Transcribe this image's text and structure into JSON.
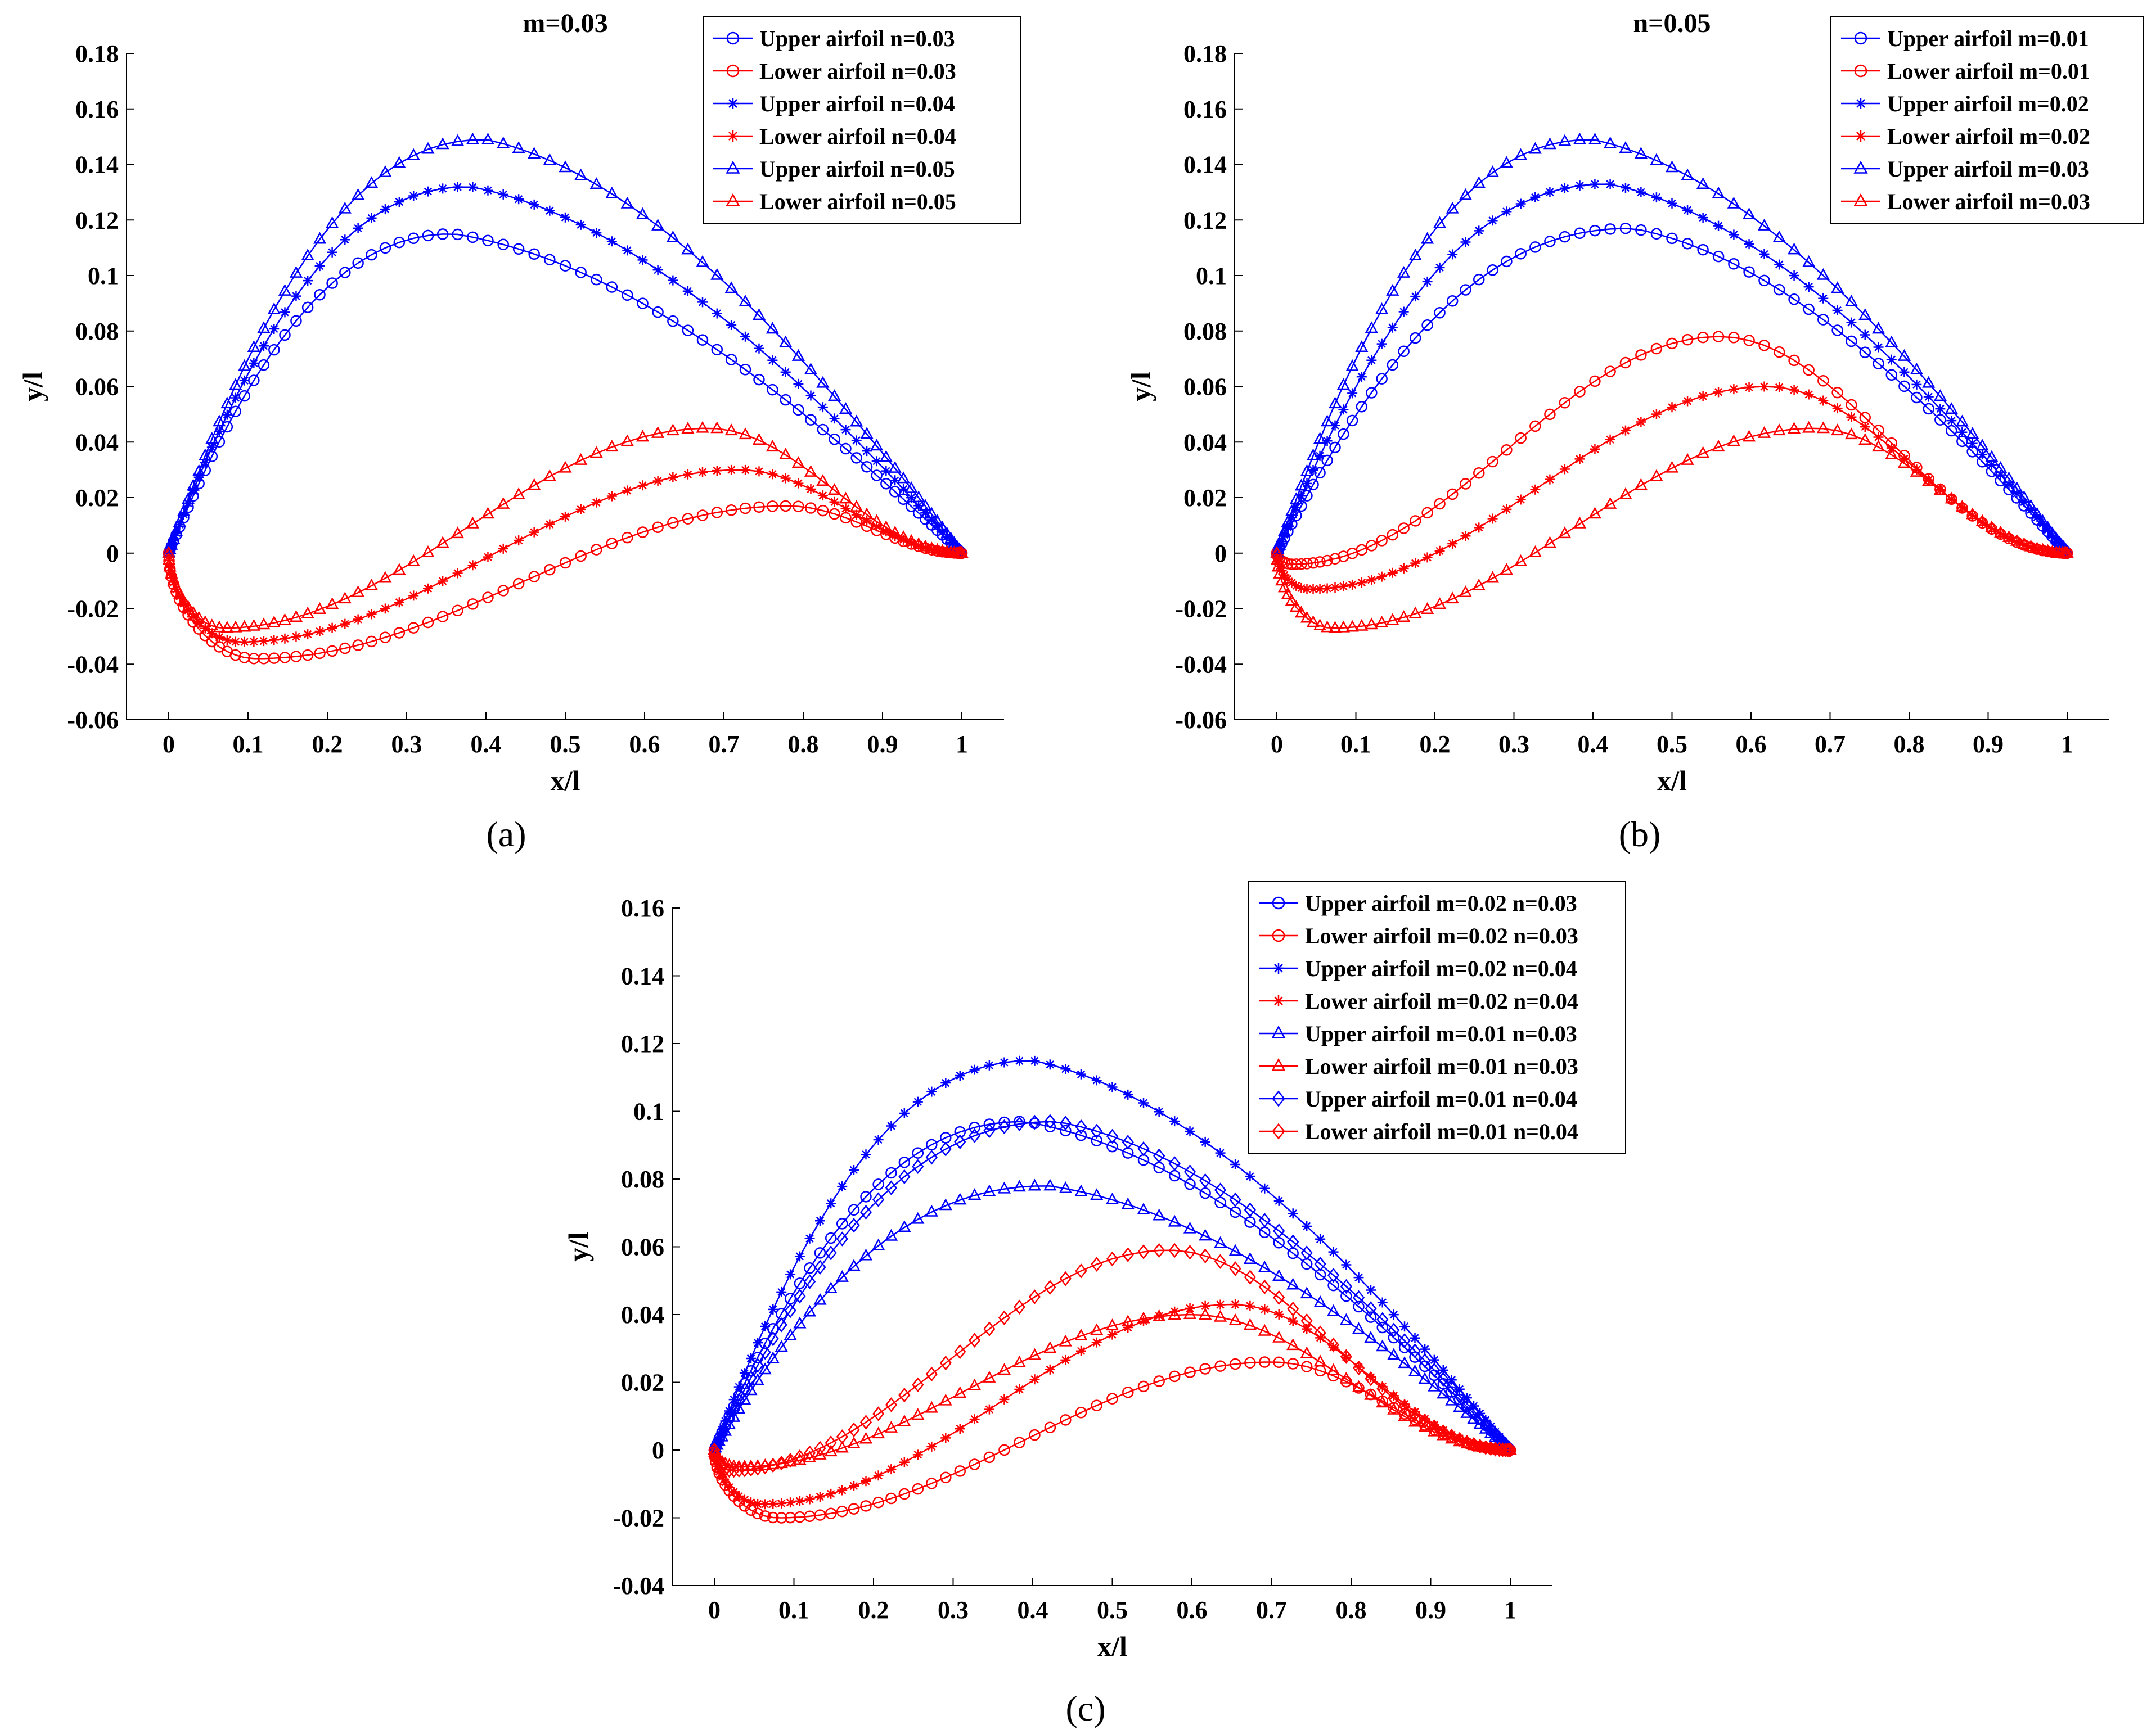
{
  "colors": {
    "upper": "#0000ff",
    "lower": "#ff0000"
  },
  "chart_data": [
    {
      "id": "a",
      "type": "line",
      "panel_label": "(a)",
      "title": "m=0.03",
      "xlabel": "x/l",
      "ylabel": "y/l",
      "xlim": [
        0,
        1
      ],
      "ylim": [
        -0.06,
        0.18
      ],
      "xticks": [
        0,
        0.1,
        0.2,
        0.3,
        0.4,
        0.5,
        0.6,
        0.7,
        0.8,
        0.9,
        1
      ],
      "xtick_labels": [
        "0",
        "0.1",
        "0.2",
        "0.3",
        "0.4",
        "0.5",
        "0.6",
        "0.7",
        "0.8",
        "0.9",
        "1"
      ],
      "yticks": [
        -0.06,
        -0.04,
        -0.02,
        0,
        0.02,
        0.04,
        0.06,
        0.08,
        0.1,
        0.12,
        0.14,
        0.16,
        0.18
      ],
      "ytick_labels": [
        "-0.06",
        "-0.04",
        "-0.02",
        "0",
        "0.02",
        "0.04",
        "0.06",
        "0.08",
        "0.1",
        "0.12",
        "0.14",
        "0.16",
        "0.18"
      ],
      "legend_position": "top-right",
      "series": [
        {
          "name": "Upper airfoil n=0.03",
          "side": "upper",
          "marker": "circle",
          "color": "#0000ff",
          "peak": [
            0.36,
            0.115
          ]
        },
        {
          "name": "Lower airfoil n=0.03",
          "side": "lower",
          "marker": "circle",
          "color": "#ff0000",
          "trough": [
            0.11,
            -0.038
          ],
          "peak": [
            0.78,
            0.017
          ]
        },
        {
          "name": "Upper airfoil n=0.04",
          "side": "upper",
          "marker": "star",
          "color": "#0000ff",
          "peak": [
            0.38,
            0.132
          ]
        },
        {
          "name": "Lower airfoil n=0.04",
          "side": "lower",
          "marker": "star",
          "color": "#ff0000",
          "trough": [
            0.09,
            -0.032
          ],
          "peak": [
            0.72,
            0.03
          ]
        },
        {
          "name": "Upper airfoil n=0.05",
          "side": "upper",
          "marker": "triangle",
          "color": "#0000ff",
          "peak": [
            0.4,
            0.149
          ]
        },
        {
          "name": "Lower airfoil n=0.05",
          "side": "lower",
          "marker": "triangle",
          "color": "#ff0000",
          "trough": [
            0.07,
            -0.027
          ],
          "peak": [
            0.68,
            0.045
          ]
        }
      ]
    },
    {
      "id": "b",
      "type": "line",
      "panel_label": "(b)",
      "title": "n=0.05",
      "xlabel": "x/l",
      "ylabel": "y/l",
      "xlim": [
        0,
        1
      ],
      "ylim": [
        -0.06,
        0.18
      ],
      "xticks": [
        0,
        0.1,
        0.2,
        0.3,
        0.4,
        0.5,
        0.6,
        0.7,
        0.8,
        0.9,
        1
      ],
      "xtick_labels": [
        "0",
        "0.1",
        "0.2",
        "0.3",
        "0.4",
        "0.5",
        "0.6",
        "0.7",
        "0.8",
        "0.9",
        "1"
      ],
      "yticks": [
        -0.06,
        -0.04,
        -0.02,
        0,
        0.02,
        0.04,
        0.06,
        0.08,
        0.1,
        0.12,
        0.14,
        0.16,
        0.18
      ],
      "ytick_labels": [
        "-0.06",
        "-0.04",
        "-0.02",
        "0",
        "0.02",
        "0.04",
        "0.06",
        "0.08",
        "0.1",
        "0.12",
        "0.14",
        "0.16",
        "0.18"
      ],
      "legend_position": "top-right",
      "series": [
        {
          "name": "Upper airfoil m=0.01",
          "side": "upper",
          "marker": "circle",
          "color": "#0000ff",
          "peak": [
            0.45,
            0.117
          ]
        },
        {
          "name": "Lower airfoil m=0.01",
          "side": "lower",
          "marker": "circle",
          "color": "#ff0000",
          "trough": [
            0.02,
            -0.004
          ],
          "peak": [
            0.56,
            0.078
          ]
        },
        {
          "name": "Upper airfoil m=0.02",
          "side": "upper",
          "marker": "star",
          "color": "#0000ff",
          "peak": [
            0.42,
            0.133
          ]
        },
        {
          "name": "Lower airfoil m=0.02",
          "side": "lower",
          "marker": "star",
          "color": "#ff0000",
          "trough": [
            0.04,
            -0.013
          ],
          "peak": [
            0.62,
            0.06
          ]
        },
        {
          "name": "Upper airfoil m=0.03",
          "side": "upper",
          "marker": "triangle",
          "color": "#0000ff",
          "peak": [
            0.4,
            0.149
          ]
        },
        {
          "name": "Lower airfoil m=0.03",
          "side": "lower",
          "marker": "triangle",
          "color": "#ff0000",
          "trough": [
            0.07,
            -0.027
          ],
          "peak": [
            0.68,
            0.045
          ]
        }
      ]
    },
    {
      "id": "c",
      "type": "line",
      "panel_label": "(c)",
      "title": "",
      "xlabel": "x/l",
      "ylabel": "y/l",
      "xlim": [
        0,
        1
      ],
      "ylim": [
        -0.04,
        0.16
      ],
      "xticks": [
        0,
        0.1,
        0.2,
        0.3,
        0.4,
        0.5,
        0.6,
        0.7,
        0.8,
        0.9,
        1
      ],
      "xtick_labels": [
        "0",
        "0.1",
        "0.2",
        "0.3",
        "0.4",
        "0.5",
        "0.6",
        "0.7",
        "0.8",
        "0.9",
        "1"
      ],
      "yticks": [
        -0.04,
        -0.02,
        0,
        0.02,
        0.04,
        0.06,
        0.08,
        0.1,
        0.12,
        0.14,
        0.16
      ],
      "ytick_labels": [
        "-0.04",
        "-0.02",
        "0",
        "0.02",
        "0.04",
        "0.06",
        "0.08",
        "0.1",
        "0.12",
        "0.14",
        "0.16"
      ],
      "legend_position": "top-right",
      "series": [
        {
          "name": "Upper airfoil m=0.02 n=0.03",
          "side": "upper",
          "marker": "circle",
          "color": "#0000ff",
          "peak": [
            0.39,
            0.097
          ]
        },
        {
          "name": "Lower airfoil m=0.02 n=0.03",
          "side": "lower",
          "marker": "circle",
          "color": "#ff0000",
          "trough": [
            0.08,
            -0.02
          ],
          "peak": [
            0.7,
            0.026
          ]
        },
        {
          "name": "Upper airfoil m=0.02 n=0.04",
          "side": "upper",
          "marker": "star",
          "color": "#0000ff",
          "peak": [
            0.4,
            0.115
          ]
        },
        {
          "name": "Lower airfoil m=0.02 n=0.04",
          "side": "lower",
          "marker": "star",
          "color": "#ff0000",
          "trough": [
            0.06,
            -0.016
          ],
          "peak": [
            0.65,
            0.043
          ]
        },
        {
          "name": "Upper airfoil m=0.01 n=0.03",
          "side": "upper",
          "marker": "triangle",
          "color": "#0000ff",
          "peak": [
            0.42,
            0.078
          ]
        },
        {
          "name": "Lower airfoil m=0.01 n=0.03",
          "side": "lower",
          "marker": "triangle",
          "color": "#ff0000",
          "trough": [
            0.03,
            -0.005
          ],
          "peak": [
            0.6,
            0.04
          ]
        },
        {
          "name": "Upper airfoil m=0.01 n=0.04",
          "side": "upper",
          "marker": "diamond",
          "color": "#0000ff",
          "peak": [
            0.43,
            0.097
          ]
        },
        {
          "name": "Lower airfoil m=0.01 n=0.04",
          "side": "lower",
          "marker": "diamond",
          "color": "#ff0000",
          "trough": [
            0.02,
            -0.006
          ],
          "peak": [
            0.57,
            0.059
          ]
        }
      ]
    }
  ]
}
